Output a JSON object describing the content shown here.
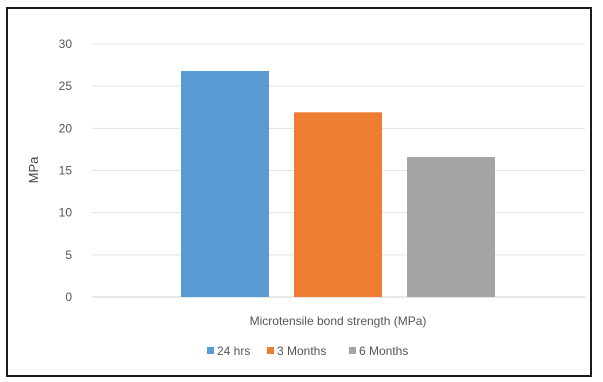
{
  "chart_data": {
    "type": "bar",
    "categories": [
      "Microtensile bond strength (MPa)"
    ],
    "series": [
      {
        "name": "24 hrs",
        "values": [
          26.8
        ],
        "color": "#5b9bd5"
      },
      {
        "name": "3 Months",
        "values": [
          21.9
        ],
        "color": "#ed7d31"
      },
      {
        "name": "6 Months",
        "values": [
          16.6
        ],
        "color": "#a5a5a5"
      }
    ],
    "ylabel": "MPa",
    "xlabel": "",
    "ylim": [
      0,
      30
    ],
    "yticks": [
      0,
      5,
      10,
      15,
      20,
      25,
      30
    ],
    "grid": true,
    "legend_position": "bottom"
  }
}
